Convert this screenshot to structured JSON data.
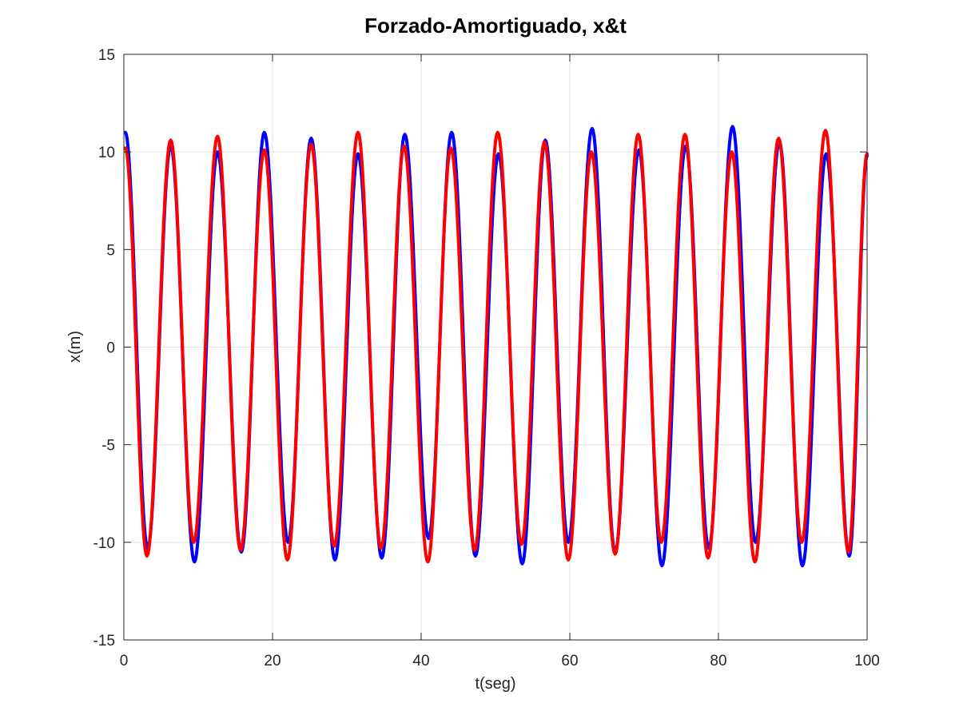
{
  "chart_data": {
    "type": "line",
    "title": "Forzado-Amortiguado, x&t",
    "xlabel": "t(seg)",
    "ylabel": "x(m)",
    "xlim": [
      0,
      100
    ],
    "ylim": [
      -15,
      15
    ],
    "xticks": [
      0,
      20,
      40,
      60,
      80,
      100
    ],
    "yticks": [
      -15,
      -10,
      -5,
      0,
      5,
      10,
      15
    ],
    "xtick_labels": [
      "0",
      "20",
      "40",
      "60",
      "80",
      "100"
    ],
    "ytick_labels": [
      "-15",
      "-10",
      "-5",
      "0",
      "5",
      "10",
      "15"
    ],
    "grid": true,
    "legend": false,
    "series": [
      {
        "color": "#0000ff",
        "x": [
          0.2,
          3.2,
          6.3,
          9.5,
          12.6,
          15.8,
          18.9,
          22.1,
          25.2,
          28.4,
          31.5,
          34.7,
          37.8,
          41.0,
          44.1,
          47.3,
          50.4,
          53.6,
          56.7,
          59.8,
          63.0,
          66.1,
          69.3,
          72.4,
          75.6,
          78.7,
          81.9,
          85.0,
          88.2,
          91.3,
          94.5,
          97.6,
          100.0
        ],
        "values": [
          11.0,
          -10.3,
          10.3,
          -11.0,
          10.0,
          -10.5,
          11.0,
          -10.0,
          10.7,
          -10.9,
          9.9,
          -10.8,
          10.9,
          -9.8,
          11.0,
          -10.7,
          9.9,
          -11.1,
          10.6,
          -10.0,
          11.2,
          -10.5,
          10.1,
          -11.2,
          10.3,
          -10.3,
          11.3,
          -10.0,
          10.5,
          -11.2,
          9.9,
          -10.7,
          9.8
        ]
      },
      {
        "color": "#ff0000",
        "x": [
          0.2,
          3.1,
          6.3,
          9.4,
          12.6,
          15.7,
          18.9,
          22.0,
          25.2,
          28.3,
          31.5,
          34.6,
          37.7,
          40.9,
          44.0,
          47.2,
          50.3,
          53.5,
          56.6,
          59.8,
          62.9,
          66.1,
          69.2,
          72.3,
          75.5,
          78.6,
          81.8,
          84.9,
          88.1,
          91.2,
          94.4,
          97.5,
          100.0
        ],
        "values": [
          10.2,
          -10.7,
          10.6,
          -10.0,
          10.8,
          -10.4,
          10.1,
          -10.9,
          10.4,
          -10.2,
          11.0,
          -10.3,
          10.3,
          -11.0,
          10.2,
          -10.4,
          11.0,
          -10.1,
          10.5,
          -10.9,
          10.0,
          -10.6,
          10.9,
          -10.0,
          10.9,
          -10.8,
          10.0,
          -11.0,
          10.7,
          -10.0,
          11.1,
          -10.5,
          9.9
        ]
      }
    ]
  }
}
